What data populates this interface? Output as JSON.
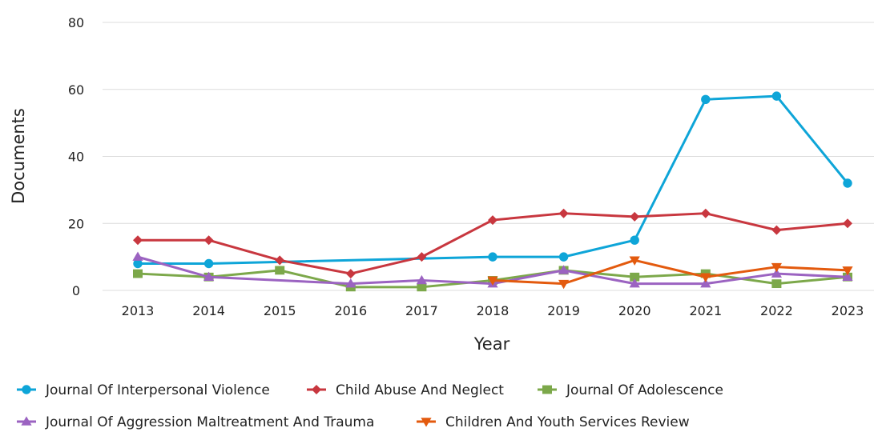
{
  "chart_data": {
    "type": "line",
    "xlabel": "Year",
    "ylabel": "Documents",
    "x": [
      "2013",
      "2014",
      "2015",
      "2016",
      "2017",
      "2018",
      "2019",
      "2020",
      "2021",
      "2022",
      "2023"
    ],
    "ylim": [
      0,
      80
    ],
    "yticks": [
      0,
      20,
      40,
      60,
      80
    ],
    "grid": "horizontal",
    "legend_position": "bottom",
    "series": [
      {
        "name": "Journal Of Interpersonal Violence",
        "color": "#0ea5d8",
        "marker": "circle",
        "points": [
          [
            2013,
            8
          ],
          [
            2014,
            8
          ],
          [
            2018,
            10
          ],
          [
            2019,
            10
          ],
          [
            2020,
            15
          ],
          [
            2021,
            57
          ],
          [
            2022,
            58
          ],
          [
            2023,
            32
          ]
        ]
      },
      {
        "name": "Child Abuse And Neglect",
        "color": "#c8373f",
        "marker": "diamond",
        "points": [
          [
            2013,
            15
          ],
          [
            2014,
            15
          ],
          [
            2015,
            9
          ],
          [
            2016,
            5
          ],
          [
            2017,
            10
          ],
          [
            2018,
            21
          ],
          [
            2019,
            23
          ],
          [
            2020,
            22
          ],
          [
            2021,
            23
          ],
          [
            2022,
            18
          ],
          [
            2023,
            20
          ]
        ]
      },
      {
        "name": "Journal Of Adolescence",
        "color": "#7ca84a",
        "marker": "square",
        "points": [
          [
            2013,
            5
          ],
          [
            2014,
            4
          ],
          [
            2015,
            6
          ],
          [
            2016,
            1
          ],
          [
            2017,
            1
          ],
          [
            2018,
            3
          ],
          [
            2019,
            6
          ],
          [
            2020,
            4
          ],
          [
            2021,
            5
          ],
          [
            2022,
            2
          ],
          [
            2023,
            4
          ]
        ]
      },
      {
        "name": "Journal Of Aggression Maltreatment And Trauma",
        "color": "#9b63c1",
        "marker": "triangle-up",
        "points": [
          [
            2013,
            10
          ],
          [
            2014,
            4
          ],
          [
            2016,
            2
          ],
          [
            2017,
            3
          ],
          [
            2018,
            2
          ],
          [
            2019,
            6
          ],
          [
            2020,
            2
          ],
          [
            2021,
            2
          ],
          [
            2022,
            5
          ],
          [
            2023,
            4
          ]
        ]
      },
      {
        "name": "Children And Youth Services Review",
        "color": "#e35a0e",
        "marker": "triangle-down",
        "points": [
          [
            2018,
            3
          ],
          [
            2019,
            2
          ],
          [
            2020,
            9
          ],
          [
            2021,
            4
          ],
          [
            2022,
            7
          ],
          [
            2023,
            6
          ]
        ]
      }
    ]
  }
}
